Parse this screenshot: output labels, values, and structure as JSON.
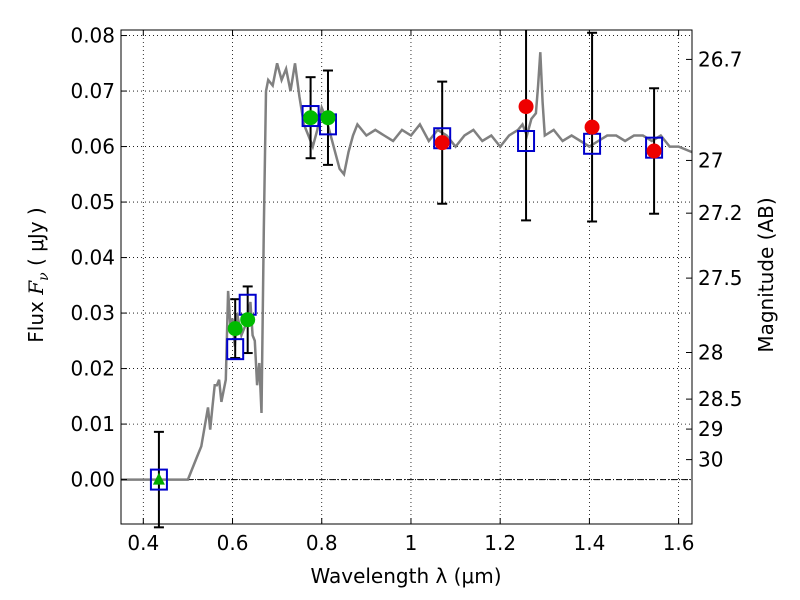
{
  "chart_data": {
    "type": "scatter",
    "xlabel": "Wavelength  λ (μm)",
    "ylabel": {
      "prefix": "Flux  ",
      "symbol": "F",
      "subscript": "ν",
      "unit": "  ( μJy )"
    },
    "y2label": "Magnitude (AB)",
    "xlim": [
      0.35,
      1.63
    ],
    "ylim": [
      -0.008,
      0.081
    ],
    "grid": true,
    "x_ticks": [
      {
        "value": 0.4,
        "label": "0.4"
      },
      {
        "value": 0.6,
        "label": "0.6"
      },
      {
        "value": 0.8,
        "label": "0.8"
      },
      {
        "value": 1.0,
        "label": "1"
      },
      {
        "value": 1.2,
        "label": "1.2"
      },
      {
        "value": 1.4,
        "label": "1.4"
      },
      {
        "value": 1.6,
        "label": "1.6"
      }
    ],
    "y_ticks": [
      {
        "value": 0.0,
        "label": "0.00"
      },
      {
        "value": 0.01,
        "label": "0.01"
      },
      {
        "value": 0.02,
        "label": "0.02"
      },
      {
        "value": 0.03,
        "label": "0.03"
      },
      {
        "value": 0.04,
        "label": "0.04"
      },
      {
        "value": 0.05,
        "label": "0.05"
      },
      {
        "value": 0.06,
        "label": "0.06"
      },
      {
        "value": 0.07,
        "label": "0.07"
      },
      {
        "value": 0.08,
        "label": "0.08"
      }
    ],
    "mag_ticks": [
      {
        "flux": 0.0757,
        "label": "26.7"
      },
      {
        "flux": 0.0575,
        "label": "27"
      },
      {
        "flux": 0.048,
        "label": "27.2"
      },
      {
        "flux": 0.0363,
        "label": "27.5"
      },
      {
        "flux": 0.0229,
        "label": "28"
      },
      {
        "flux": 0.0145,
        "label": "28.5"
      },
      {
        "flux": 0.0091,
        "label": "29"
      },
      {
        "flux": 0.0036,
        "label": "30"
      }
    ],
    "sed_model": {
      "color": "#808080",
      "x": [
        0.35,
        0.5,
        0.52,
        0.53,
        0.545,
        0.55,
        0.555,
        0.56,
        0.565,
        0.57,
        0.575,
        0.58,
        0.585,
        0.59,
        0.595,
        0.6,
        0.605,
        0.61,
        0.62,
        0.63,
        0.64,
        0.645,
        0.65,
        0.655,
        0.66,
        0.665,
        0.67,
        0.675,
        0.68,
        0.69,
        0.7,
        0.71,
        0.72,
        0.73,
        0.74,
        0.75,
        0.76,
        0.77,
        0.78,
        0.79,
        0.8,
        0.81,
        0.82,
        0.83,
        0.84,
        0.85,
        0.86,
        0.87,
        0.88,
        0.9,
        0.92,
        0.94,
        0.96,
        0.98,
        1.0,
        1.02,
        1.04,
        1.06,
        1.08,
        1.1,
        1.12,
        1.14,
        1.16,
        1.18,
        1.2,
        1.22,
        1.24,
        1.25,
        1.26,
        1.27,
        1.28,
        1.285,
        1.29,
        1.295,
        1.3,
        1.32,
        1.34,
        1.36,
        1.38,
        1.4,
        1.42,
        1.44,
        1.46,
        1.48,
        1.5,
        1.52,
        1.54,
        1.56,
        1.58,
        1.6,
        1.63
      ],
      "y": [
        0.0,
        0.0,
        0.004,
        0.006,
        0.013,
        0.009,
        0.013,
        0.017,
        0.017,
        0.018,
        0.014,
        0.016,
        0.018,
        0.034,
        0.028,
        0.029,
        0.024,
        0.03,
        0.026,
        0.028,
        0.032,
        0.026,
        0.025,
        0.017,
        0.021,
        0.012,
        0.045,
        0.07,
        0.072,
        0.071,
        0.075,
        0.072,
        0.074,
        0.07,
        0.075,
        0.069,
        0.064,
        0.062,
        0.06,
        0.063,
        0.067,
        0.065,
        0.062,
        0.059,
        0.056,
        0.055,
        0.059,
        0.062,
        0.064,
        0.062,
        0.063,
        0.062,
        0.061,
        0.063,
        0.062,
        0.064,
        0.061,
        0.063,
        0.062,
        0.06,
        0.062,
        0.063,
        0.061,
        0.062,
        0.06,
        0.062,
        0.063,
        0.064,
        0.062,
        0.065,
        0.066,
        0.071,
        0.077,
        0.068,
        0.062,
        0.063,
        0.061,
        0.062,
        0.061,
        0.06,
        0.061,
        0.062,
        0.062,
        0.061,
        0.062,
        0.062,
        0.061,
        0.062,
        0.06,
        0.06,
        0.059
      ]
    },
    "model_boxes": {
      "color": "#0000cc",
      "points": [
        {
          "x": 0.435,
          "y": 0.0
        },
        {
          "x": 0.606,
          "y": 0.0235
        },
        {
          "x": 0.634,
          "y": 0.0315
        },
        {
          "x": 0.775,
          "y": 0.0655
        },
        {
          "x": 0.814,
          "y": 0.064
        },
        {
          "x": 1.07,
          "y": 0.0615
        },
        {
          "x": 1.258,
          "y": 0.061
        },
        {
          "x": 1.406,
          "y": 0.0605
        },
        {
          "x": 1.545,
          "y": 0.0598
        }
      ]
    },
    "observations": [
      {
        "x": 0.435,
        "y": 0.0,
        "err": 0.0086,
        "marker": "triangle",
        "color": "#00aa00"
      },
      {
        "x": 0.606,
        "y": 0.0272,
        "err": 0.0053,
        "marker": "circle",
        "color": "#00bb00"
      },
      {
        "x": 0.634,
        "y": 0.0288,
        "err": 0.006,
        "marker": "circle",
        "color": "#00bb00"
      },
      {
        "x": 0.775,
        "y": 0.0652,
        "err": 0.0073,
        "marker": "circle",
        "color": "#00bb00"
      },
      {
        "x": 0.814,
        "y": 0.0652,
        "err": 0.0085,
        "marker": "circle",
        "color": "#00bb00"
      },
      {
        "x": 1.07,
        "y": 0.0607,
        "err": 0.011,
        "marker": "circle",
        "color": "#ee0000"
      },
      {
        "x": 1.258,
        "y": 0.0672,
        "err": 0.0205,
        "marker": "circle",
        "color": "#ee0000"
      },
      {
        "x": 1.406,
        "y": 0.0635,
        "err": 0.017,
        "marker": "circle",
        "color": "#ee0000"
      },
      {
        "x": 1.545,
        "y": 0.0592,
        "err": 0.0113,
        "marker": "circle",
        "color": "#ee0000"
      }
    ]
  }
}
